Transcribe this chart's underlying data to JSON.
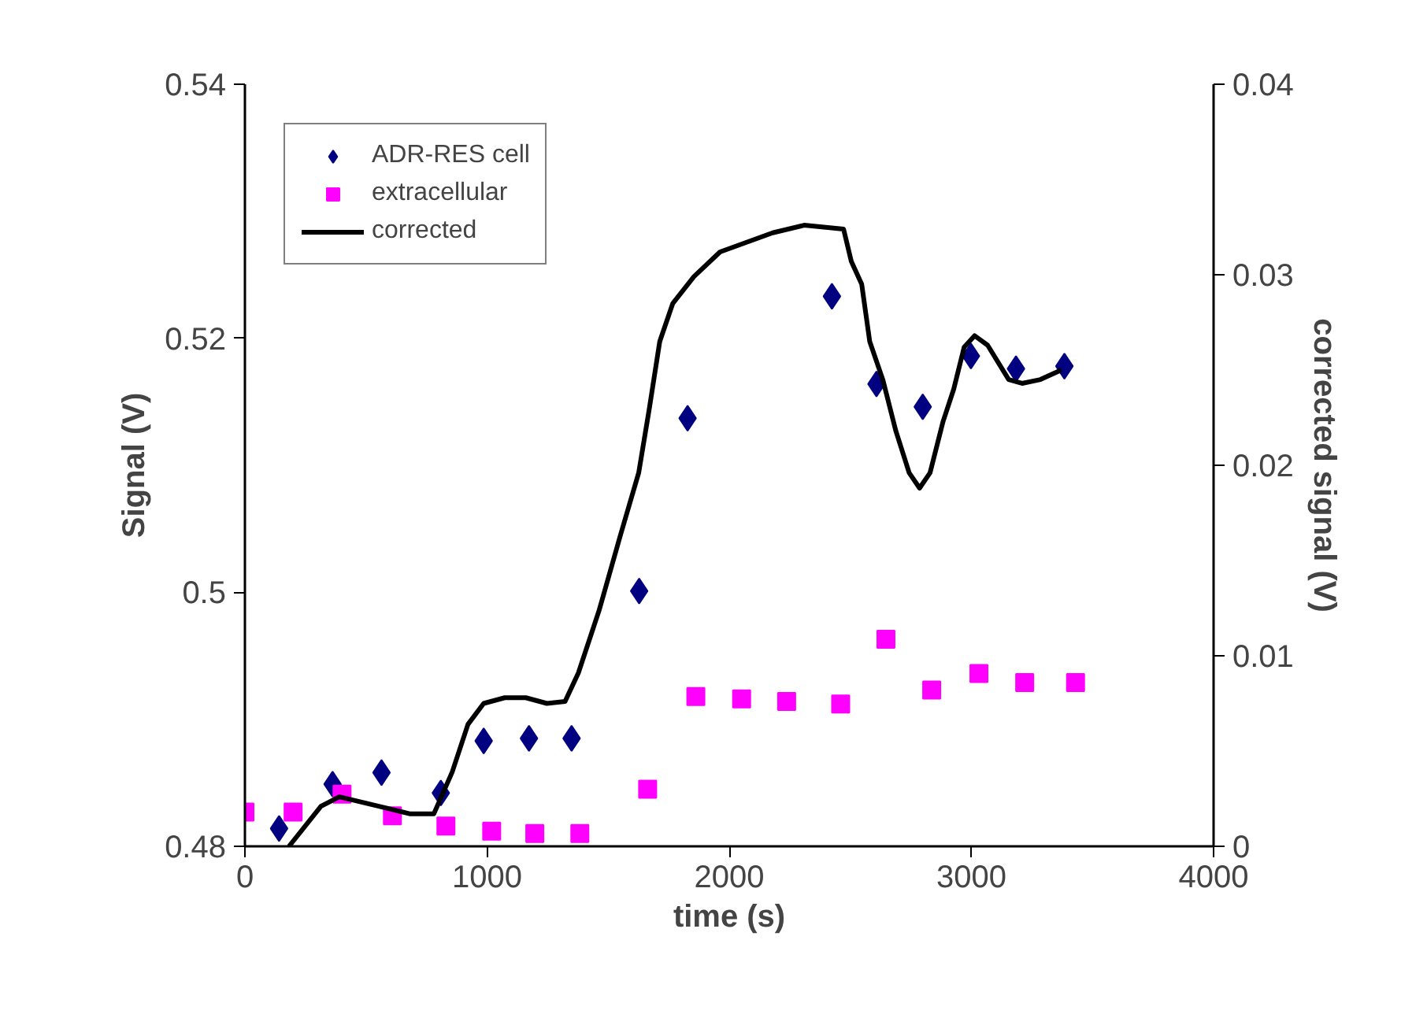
{
  "chart_data": {
    "type": "scatter",
    "xlabel": "time (s)",
    "ylabel": "Signal (V)",
    "y2label": "corrected signal (V)",
    "xlim": [
      0,
      4000
    ],
    "xticks": [
      0,
      1000,
      2000,
      3000,
      4000
    ],
    "ylim": [
      0.48,
      0.54
    ],
    "yticks": [
      {
        "value": 0.48,
        "label": "0.48"
      },
      {
        "value": 0.5,
        "label": "0.5"
      },
      {
        "value": 0.52,
        "label": "0.52"
      },
      {
        "value": 0.54,
        "label": "0.54"
      }
    ],
    "y2lim": [
      0,
      0.04
    ],
    "y2ticks": [
      0,
      0.01,
      0.02,
      0.03,
      0.04
    ],
    "grid": false,
    "legend": "top left",
    "series": [
      {
        "name": "ADR-RES cell",
        "marker": "diamond",
        "color": "#000080",
        "x": [
          141,
          362,
          564,
          809,
          986,
          1173,
          1349,
          1628,
          1828,
          2424,
          2608,
          2799,
          2998,
          3184,
          3384
        ],
        "values": [
          0.4814,
          0.4849,
          0.4858,
          0.4842,
          0.4883,
          0.4885,
          0.4885,
          0.5001,
          0.5137,
          0.5233,
          0.5164,
          0.5146,
          0.5186,
          0.5176,
          0.5178
        ]
      },
      {
        "name": "extracellular",
        "marker": "square",
        "color": "#ff00ff",
        "x": [
          0,
          199,
          401,
          609,
          830,
          1019,
          1197,
          1383,
          1663,
          1862,
          2051,
          2237,
          2460,
          2647,
          2836,
          3031,
          3220,
          3430
        ],
        "values": [
          0.4827,
          0.4827,
          0.4841,
          0.4824,
          0.4816,
          0.4812,
          0.481,
          0.481,
          0.4845,
          0.4918,
          0.4916,
          0.4914,
          0.4912,
          0.4963,
          0.4923,
          0.4936,
          0.4929,
          0.4929
        ]
      },
      {
        "name": "corrected",
        "type": "line",
        "axis": "y2",
        "marker": "none",
        "line_style": "solid",
        "color": "#000000",
        "x": [
          182,
          314,
          390,
          553,
          683,
          780,
          856,
          921,
          986,
          1073,
          1160,
          1247,
          1322,
          1377,
          1463,
          1550,
          1626,
          1669,
          1713,
          1767,
          1854,
          1962,
          2179,
          2309,
          2472,
          2504,
          2547,
          2580,
          2634,
          2688,
          2743,
          2786,
          2829,
          2883,
          2927,
          2970,
          3013,
          3067,
          3154,
          3209,
          3285,
          3371
        ],
        "values": [
          0.0,
          0.0021,
          0.0026,
          0.0021,
          0.0017,
          0.0017,
          0.0039,
          0.0064,
          0.0075,
          0.0078,
          0.0078,
          0.0075,
          0.0076,
          0.0091,
          0.0124,
          0.0163,
          0.0196,
          0.0229,
          0.0265,
          0.0285,
          0.0299,
          0.0312,
          0.0322,
          0.0326,
          0.0324,
          0.0307,
          0.0295,
          0.0265,
          0.0245,
          0.0218,
          0.0196,
          0.0188,
          0.0196,
          0.0223,
          0.024,
          0.0262,
          0.0268,
          0.0263,
          0.0245,
          0.0243,
          0.0245,
          0.025
        ]
      }
    ]
  }
}
